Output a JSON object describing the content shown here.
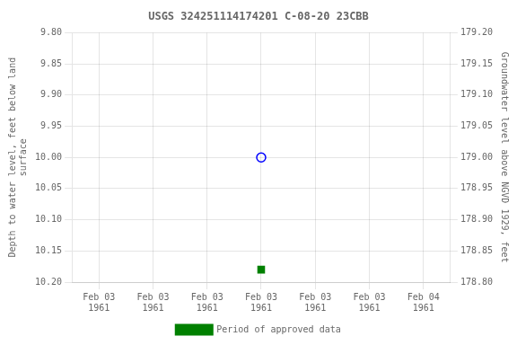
{
  "chart_data": {
    "type": "scatter",
    "title": "USGS 324251114174201 C-08-20 23CBB",
    "categories": [
      "Feb 03\n1961",
      "Feb 03\n1961",
      "Feb 03\n1961",
      "Feb 03\n1961",
      "Feb 03\n1961",
      "Feb 03\n1961",
      "Feb 04\n1961"
    ],
    "y_label": "Depth to water level, feet below land\nsurface",
    "y2_label": "Groundwater level above NGVD 1929, feet",
    "ylim": [
      10.2,
      9.8
    ],
    "yticks": [
      {
        "value": 9.8,
        "label": "9.80"
      },
      {
        "value": 9.85,
        "label": "9.85"
      },
      {
        "value": 9.9,
        "label": "9.90"
      },
      {
        "value": 9.95,
        "label": "9.95"
      },
      {
        "value": 10.0,
        "label": "10.00"
      },
      {
        "value": 10.05,
        "label": "10.05"
      },
      {
        "value": 10.1,
        "label": "10.10"
      },
      {
        "value": 10.15,
        "label": "10.15"
      },
      {
        "value": 10.2,
        "label": "10.20"
      }
    ],
    "y2lim": [
      178.8,
      179.2
    ],
    "y2ticks": [
      {
        "value": 179.2,
        "label": "179.20"
      },
      {
        "value": 179.15,
        "label": "179.15"
      },
      {
        "value": 179.1,
        "label": "179.10"
      },
      {
        "value": 179.05,
        "label": "179.05"
      },
      {
        "value": 179.0,
        "label": "179.00"
      },
      {
        "value": 178.95,
        "label": "178.95"
      },
      {
        "value": 178.9,
        "label": "178.90"
      },
      {
        "value": 178.85,
        "label": "178.85"
      },
      {
        "value": 178.8,
        "label": "178.80"
      }
    ],
    "grid": true,
    "legend": "bottom",
    "series": [
      {
        "color": "blue",
        "marker": "open_circle",
        "values": [
          null,
          null,
          null,
          10.0,
          null,
          null,
          null
        ]
      },
      {
        "name": "Period of approved data",
        "color": "green",
        "marker": "square",
        "values": [
          null,
          null,
          null,
          10.18,
          null,
          null,
          null
        ]
      }
    ]
  }
}
